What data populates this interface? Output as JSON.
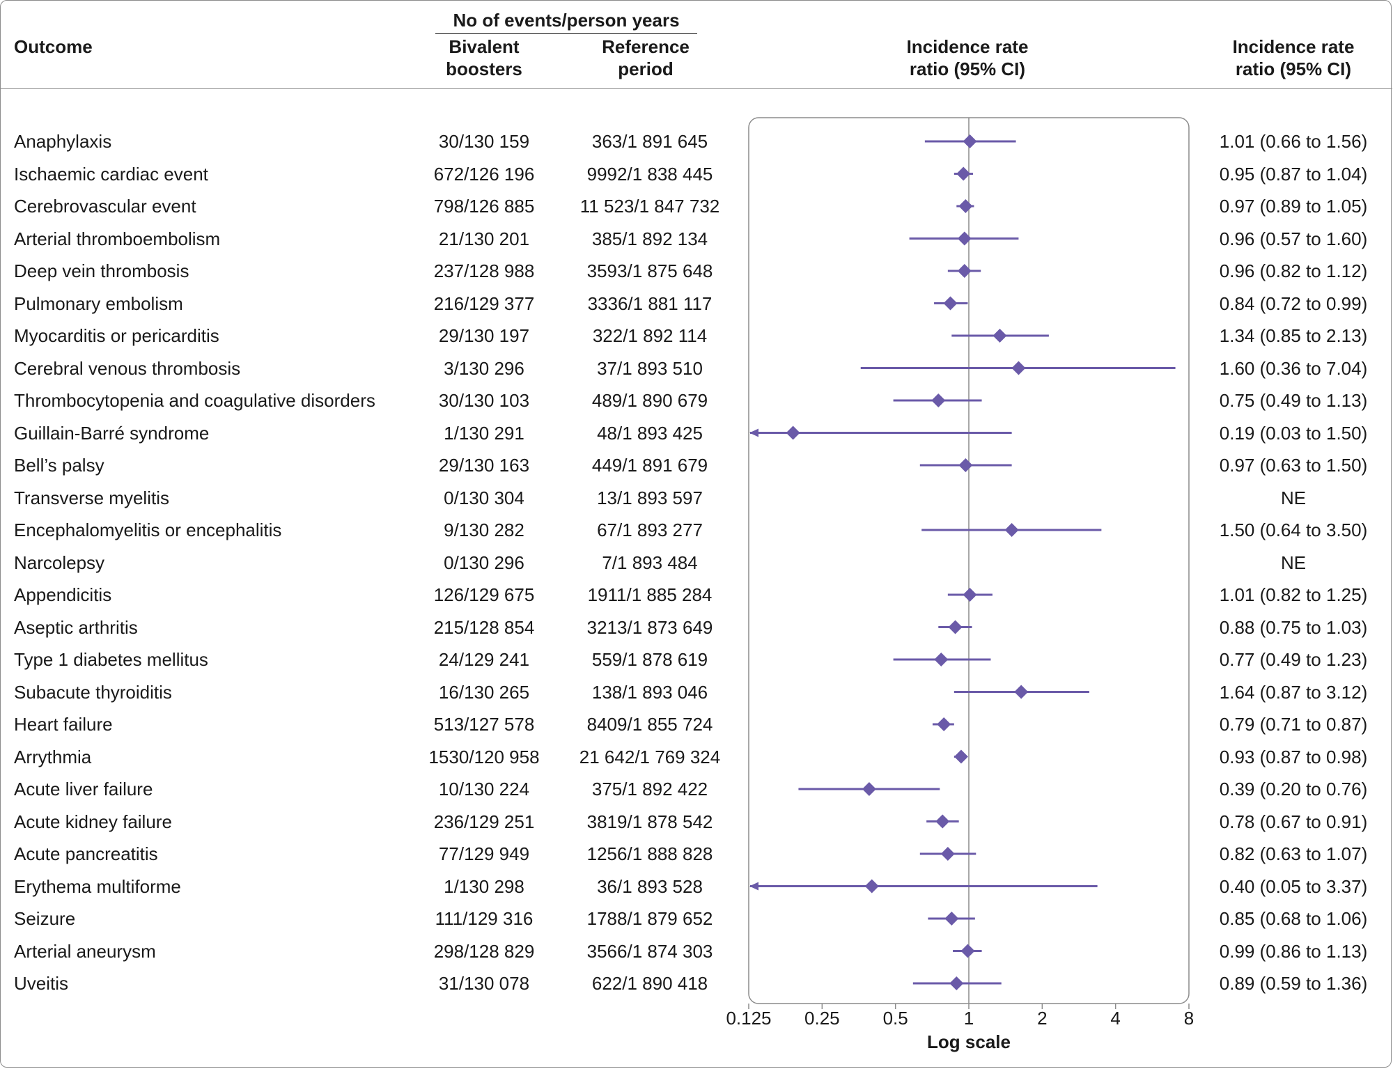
{
  "headers": {
    "outcome": "Outcome",
    "group": "No of events/person years",
    "col_a_line1": "Bivalent",
    "col_a_line2": "boosters",
    "col_b_line1": "Reference",
    "col_b_line2": "period",
    "plot_line1": "Incidence rate",
    "plot_line2": "ratio (95% CI)",
    "irr_line1": "Incidence rate",
    "irr_line2": "ratio (95% CI)"
  },
  "colors": {
    "marker": "#6a5aa8",
    "axis": "#8c8c8c",
    "text": "#1a1a1a"
  },
  "chart_data": {
    "type": "forest",
    "x_scale": "log2",
    "xlim": [
      0.125,
      8
    ],
    "reference_line": 1,
    "xticks": [
      "0.125",
      "0.25",
      "0.5",
      "1",
      "2",
      "4",
      "8"
    ],
    "xlabel": "Log scale",
    "rows": [
      {
        "outcome": "Anaphylaxis",
        "boosters": "30/130 159",
        "reference": "363/1 891 645",
        "irr_text": "1.01 (0.66 to 1.56)",
        "irr": 1.01,
        "lo": 0.66,
        "hi": 1.56
      },
      {
        "outcome": "Ischaemic cardiac event",
        "boosters": "672/126 196",
        "reference": "9992/1 838 445",
        "irr_text": "0.95 (0.87 to 1.04)",
        "irr": 0.95,
        "lo": 0.87,
        "hi": 1.04
      },
      {
        "outcome": "Cerebrovascular event",
        "boosters": "798/126 885",
        "reference": "11 523/1 847 732",
        "irr_text": "0.97 (0.89 to 1.05)",
        "irr": 0.97,
        "lo": 0.89,
        "hi": 1.05
      },
      {
        "outcome": "Arterial thromboembolism",
        "boosters": "21/130 201",
        "reference": "385/1 892 134",
        "irr_text": "0.96 (0.57 to 1.60)",
        "irr": 0.96,
        "lo": 0.57,
        "hi": 1.6
      },
      {
        "outcome": "Deep vein thrombosis",
        "boosters": "237/128 988",
        "reference": "3593/1 875 648",
        "irr_text": "0.96 (0.82 to 1.12)",
        "irr": 0.96,
        "lo": 0.82,
        "hi": 1.12
      },
      {
        "outcome": "Pulmonary embolism",
        "boosters": "216/129 377",
        "reference": "3336/1 881 117",
        "irr_text": "0.84 (0.72 to 0.99)",
        "irr": 0.84,
        "lo": 0.72,
        "hi": 0.99
      },
      {
        "outcome": "Myocarditis or pericarditis",
        "boosters": "29/130 197",
        "reference": "322/1 892 114",
        "irr_text": "1.34 (0.85 to 2.13)",
        "irr": 1.34,
        "lo": 0.85,
        "hi": 2.13
      },
      {
        "outcome": "Cerebral venous thrombosis",
        "boosters": "3/130 296",
        "reference": "37/1 893 510",
        "irr_text": "1.60 (0.36 to 7.04)",
        "irr": 1.6,
        "lo": 0.36,
        "hi": 7.04
      },
      {
        "outcome": "Thrombocytopenia and coagulative disorders",
        "boosters": "30/130 103",
        "reference": "489/1 890 679",
        "irr_text": "0.75 (0.49 to 1.13)",
        "irr": 0.75,
        "lo": 0.49,
        "hi": 1.13
      },
      {
        "outcome": "Guillain-Barré syndrome",
        "boosters": "1/130 291",
        "reference": "48/1 893 425",
        "irr_text": "0.19 (0.03 to 1.50)",
        "irr": 0.19,
        "lo": 0.03,
        "hi": 1.5
      },
      {
        "outcome": "Bell’s palsy",
        "boosters": "29/130 163",
        "reference": "449/1 891 679",
        "irr_text": "0.97 (0.63 to 1.50)",
        "irr": 0.97,
        "lo": 0.63,
        "hi": 1.5
      },
      {
        "outcome": "Transverse myelitis",
        "boosters": "0/130 304",
        "reference": "13/1 893 597",
        "irr_text": "NE",
        "irr": null,
        "lo": null,
        "hi": null
      },
      {
        "outcome": "Encephalomyelitis or encephalitis",
        "boosters": "9/130 282",
        "reference": "67/1 893 277",
        "irr_text": "1.50 (0.64 to 3.50)",
        "irr": 1.5,
        "lo": 0.64,
        "hi": 3.5
      },
      {
        "outcome": "Narcolepsy",
        "boosters": "0/130 296",
        "reference": "7/1 893 484",
        "irr_text": "NE",
        "irr": null,
        "lo": null,
        "hi": null
      },
      {
        "outcome": "Appendicitis",
        "boosters": "126/129 675",
        "reference": "1911/1 885 284",
        "irr_text": "1.01 (0.82 to 1.25)",
        "irr": 1.01,
        "lo": 0.82,
        "hi": 1.25
      },
      {
        "outcome": "Aseptic arthritis",
        "boosters": "215/128 854",
        "reference": "3213/1 873 649",
        "irr_text": "0.88 (0.75 to 1.03)",
        "irr": 0.88,
        "lo": 0.75,
        "hi": 1.03
      },
      {
        "outcome": "Type 1 diabetes mellitus",
        "boosters": "24/129 241",
        "reference": "559/1 878 619",
        "irr_text": "0.77 (0.49 to 1.23)",
        "irr": 0.77,
        "lo": 0.49,
        "hi": 1.23
      },
      {
        "outcome": "Subacute thyroiditis",
        "boosters": "16/130 265",
        "reference": "138/1 893 046",
        "irr_text": "1.64 (0.87 to 3.12)",
        "irr": 1.64,
        "lo": 0.87,
        "hi": 3.12
      },
      {
        "outcome": "Heart failure",
        "boosters": "513/127 578",
        "reference": "8409/1 855 724",
        "irr_text": "0.79 (0.71 to 0.87)",
        "irr": 0.79,
        "lo": 0.71,
        "hi": 0.87
      },
      {
        "outcome": "Arrythmia",
        "boosters": "1530/120 958",
        "reference": "21 642/1 769 324",
        "irr_text": "0.93 (0.87 to 0.98)",
        "irr": 0.93,
        "lo": 0.87,
        "hi": 0.98
      },
      {
        "outcome": "Acute liver failure",
        "boosters": "10/130 224",
        "reference": "375/1 892 422",
        "irr_text": "0.39 (0.20 to 0.76)",
        "irr": 0.39,
        "lo": 0.2,
        "hi": 0.76
      },
      {
        "outcome": "Acute kidney failure",
        "boosters": "236/129 251",
        "reference": "3819/1 878 542",
        "irr_text": "0.78 (0.67 to 0.91)",
        "irr": 0.78,
        "lo": 0.67,
        "hi": 0.91
      },
      {
        "outcome": "Acute pancreatitis",
        "boosters": "77/129 949",
        "reference": "1256/1 888 828",
        "irr_text": "0.82 (0.63 to 1.07)",
        "irr": 0.82,
        "lo": 0.63,
        "hi": 1.07
      },
      {
        "outcome": "Erythema multiforme",
        "boosters": "1/130 298",
        "reference": "36/1 893 528",
        "irr_text": "0.40 (0.05 to 3.37)",
        "irr": 0.4,
        "lo": 0.05,
        "hi": 3.37
      },
      {
        "outcome": "Seizure",
        "boosters": "111/129 316",
        "reference": "1788/1 879 652",
        "irr_text": "0.85 (0.68 to 1.06)",
        "irr": 0.85,
        "lo": 0.68,
        "hi": 1.06
      },
      {
        "outcome": "Arterial aneurysm",
        "boosters": "298/128 829",
        "reference": "3566/1 874 303",
        "irr_text": "0.99 (0.86 to 1.13)",
        "irr": 0.99,
        "lo": 0.86,
        "hi": 1.13
      },
      {
        "outcome": "Uveitis",
        "boosters": "31/130 078",
        "reference": "622/1 890 418",
        "irr_text": "0.89 (0.59 to 1.36)",
        "irr": 0.89,
        "lo": 0.59,
        "hi": 1.36
      }
    ]
  }
}
